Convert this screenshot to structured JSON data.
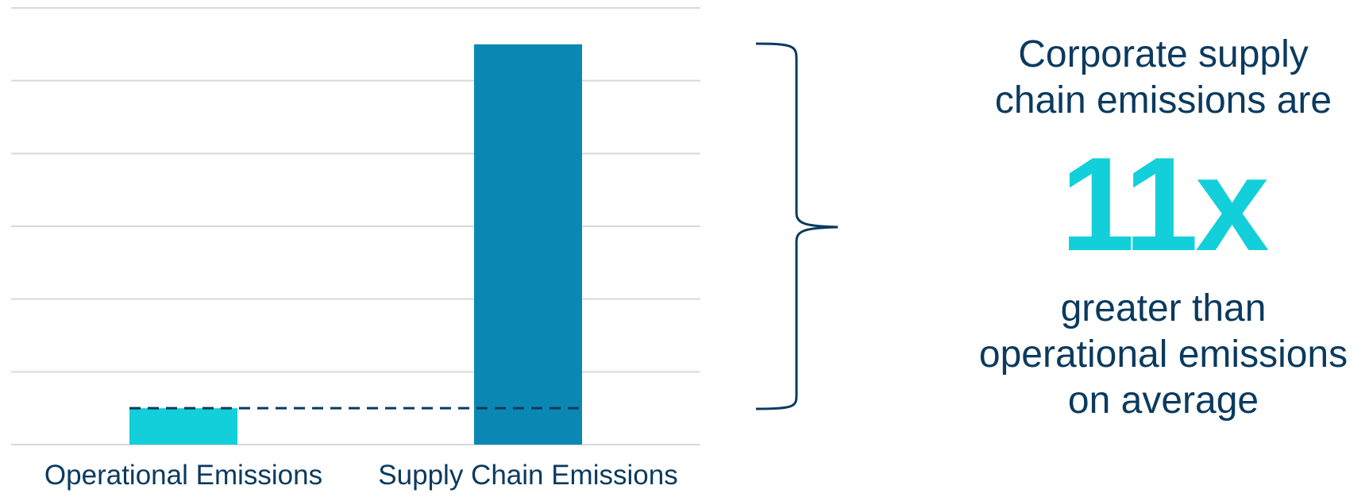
{
  "chart_data": {
    "type": "bar",
    "categories": [
      "Operational Emissions",
      "Supply Chain Emissions"
    ],
    "values": [
      1,
      11
    ],
    "bar_colors": [
      "#12cfd9",
      "#0a88b3"
    ],
    "reference_line": {
      "value": 1,
      "style": "dashed",
      "color": "#0b3a5e"
    },
    "ylim": [
      0,
      12
    ],
    "ytick_step": 2,
    "grid": true,
    "title": "",
    "xlabel": "",
    "ylabel": ""
  },
  "callout": {
    "line1": "Corporate supply",
    "line2": "chain emissions are",
    "multiple": "11x",
    "line3": "greater than",
    "line4": "operational emissions",
    "line5": "on average"
  },
  "colors": {
    "text": "#0b3a5e",
    "accent": "#12cfd9",
    "bar_primary": "#0a88b3",
    "grid": "#d9d9d9",
    "bracket": "#0b3a5e"
  }
}
